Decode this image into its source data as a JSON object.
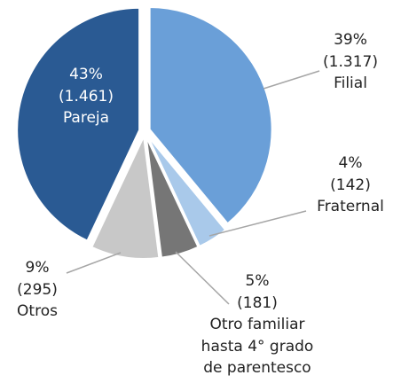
{
  "chart_data": {
    "type": "pie",
    "categories": [
      "Filial",
      "Fraternal",
      "Otro familiar hasta 4° grado de parentesco",
      "Otros",
      "Pareja"
    ],
    "values": [
      39,
      4,
      5,
      9,
      43
    ],
    "value_labels": [
      "39%",
      "4%",
      "5%",
      "9%",
      "43%"
    ],
    "counts": [
      1317,
      142,
      181,
      295,
      1461
    ],
    "count_labels": [
      "(1.317)",
      "(142)",
      "(181)",
      "(295)",
      "(1.461)"
    ],
    "colors": [
      "#6a9fd8",
      "#a9c9ea",
      "#767676",
      "#c8c8c8",
      "#2a5a93"
    ]
  }
}
